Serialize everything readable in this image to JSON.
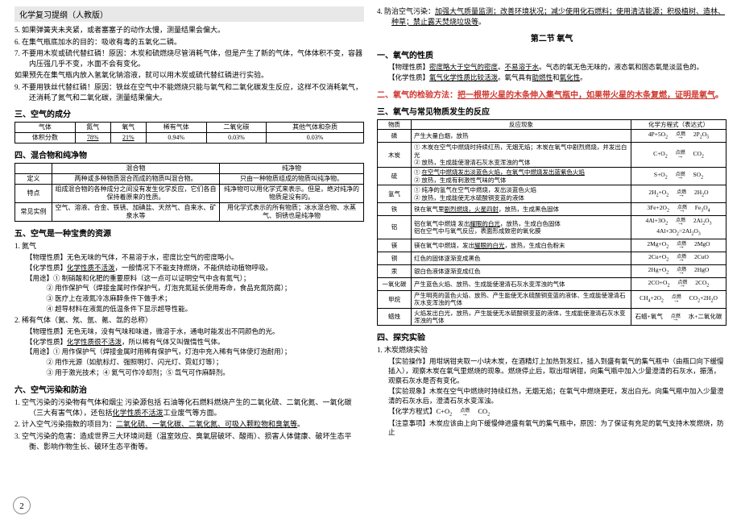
{
  "header": "化学复习提纲（人教版）",
  "page_num": "2",
  "left": {
    "items": [
      "5.  如果弹簧夹未夹紧，或者塞塞子的动作太慢，测量结果会偏大。",
      "6.  在集气瓶底加水的目的：吸收有毒的五氧化二磷。",
      "7.  不要用木炭或硫代替红磷！原因：木炭和硫燃烧尽管消耗气体，但是产生了新的气体，气体体积不变，容器内压强几乎不变，水面不会有变化。",
      "    如果预先在集气瓶内放入氢氧化钠溶液，就可以用木炭或硫代替红磷进行实验。",
      "9.  不要用铁丝代替红磷！原因：铁丝在空气中不能燃烧只能与氧气和二氧化碳发生反应，这样不仅消耗氧气，还消耗了氮气和二氧化碳，测量结果偏大。"
    ],
    "sec3_title": "三、空气的成分",
    "air_table": {
      "headers": [
        "气体",
        "氮气",
        "氧气",
        "稀有气体",
        "二氧化碳",
        "其他气体和杂质"
      ],
      "row_label": "体积分数",
      "vals": [
        "78%",
        "21%",
        "0.94%",
        "0.03%",
        "0.03%"
      ]
    },
    "sec4_title": "四、混合物和纯净物",
    "def_table": {
      "col1": "混合物",
      "col2": "纯净物",
      "rows": [
        [
          "定义",
          "两种或多种物质混合而成的物质叫混合物。",
          "只由一种物质组成的物质叫纯净物。"
        ],
        [
          "特点",
          "组成混合物的各种成分之间没有发生化学反应，它们各自保持着原来的性质。",
          "纯净物可以用化学式来表示。但是，绝对纯净的物质是没有的。"
        ],
        [
          "常见实例",
          "空气、溶液、合金、铁锈、加碘盐、天然气、自来水、矿泉水等",
          "用化学式表示的所有物质；冰水混合物、水蒸气、铜锈也是纯净物"
        ]
      ]
    },
    "sec5_title": "五、空气是一种宝贵的资源",
    "n2_title": "1.  氮气",
    "n2_items": [
      "【物理性质】无色无味的气体，不易溶于水，密度比空气的密度略小。",
      "【化学性质】<u>化学性质不活泼</u>，一般情况下不能支持燃烧，不能供给动植物呼吸。",
      "【用途】① 制硝酸和化肥的重要原料（这一点可以证明空气中含有氮气）；",
      "　　　② 用作保护气（焊接金属时作保护气，灯泡充氮延长使用寿命，食品充氮防腐）；",
      "　　　③ 医疗上在液氮冷冻麻醉条件下做手术；",
      "　　　④ 超导材料在液氮的低温条件下显示超导性能。"
    ],
    "rare_title": "2.  稀有气体（氦、氖、氩、氪、氙的总称）",
    "rare_items": [
      "【物理性质】无色无味，没有气味和味道，微溶于水，通电时能发出不同颜色的光。",
      "【化学性质】<u>化学性质很不活泼</u>，所以稀有气体又叫做惰性气体。",
      "【用途】① 用作保护气（焊接金属时用稀有保护气，灯泡中充入稀有气体使灯泡耐用）；",
      "　　　② 用作光源（如航标灯、强照明灯、闪光灯、霓虹灯等）；",
      "　　　③ 用于激光技术；④ 氦气可作冷却剂；⑤ 氙气可作麻醉剂。"
    ],
    "sec6_title": "六、空气污染和防治",
    "pollute_items": [
      "1.  空气污染的污染物有气体和烟尘 污染源包括 石油等化石燃料燃烧产生的二氧化硫、二氧化氮、一氧化碳（三大有害气体），还包括<u>化学性质不活泼</u>工业废气等方面。",
      "2.  计入空气污染指数的项目为：<u>二氧化硫、一氧化碳、二氧化氮、可吸入颗粒物和臭氧等</u>。",
      "3.  空气污染的危害：造成世界三大环境问题（温室效应、臭氧层破坏、酸雨）、损害人体健康、破坏生态平衡、影响作物生长、破环生态平衡等。"
    ]
  },
  "right": {
    "top_item": "4. 防治空气污染：<u>加强大气质量监测；改善环境状况；减少使用化石燃料；使用清洁能源；积极植树、造林、种草；禁止露天焚烧垃圾等</u>。",
    "section2_title": "第二节  氧气",
    "prop_title": "一、氧气的性质",
    "phys": "【物理性质】<u>密度略大于空气的密度</u>。<u>不易溶于水</u>。气态的氧无色无味的，液态氧和固态氧是淡蓝色的。",
    "chem": "【化学性质】<u>氧气化学性质比较活泼</u>。氧气具有<u>助燃性</u>和<u>氧化性</u>。",
    "sec2_title": "二、氧气的检验方法：<span class='under-red'>把一根带火星的木条伸入集气瓶中，如果带火星的木条复燃，证明是氧气</span>。",
    "sec3_title": "三、氧气与常见物质发生的反应",
    "reaction_table": {
      "headers": [
        "物质",
        "反应现象",
        "化学方程式（表达式）"
      ],
      "rows": [
        [
          "磷",
          "产生大量白烟，放热",
          "4P+5O<sub>2</sub>",
          "2P<sub>2</sub>O<sub>5</sub>"
        ],
        [
          "木炭",
          "① 木炭在空气中燃烧时持续红热，无烟无焰；木炭在氧气中剧烈燃烧，并发出白光<br>② 放热，生成能使澄清石灰水变浑浊的气体",
          "C+O<sub>2</sub>",
          "CO<sub>2</sub>"
        ],
        [
          "硫",
          "① <u>在空气中燃烧发出淡蓝色火焰，在氧气中燃烧发出蓝紫色火焰</u><br>② 放热，生成有刺激性气味的气体",
          "S+O<sub>2</sub>",
          "SO<sub>2</sub>"
        ],
        [
          "氢气",
          "① 纯净的氢气在空气中燃烧，发出淡蓝色火焰<br>② 放热，生成能使无水硫酸铜变蓝的液体",
          "2H<sub>2</sub>+O<sub>2</sub>",
          "2H<sub>2</sub>O"
        ],
        [
          "铁",
          "铁在氧气里<u>剧烈燃烧，火星四射</u>，放热，生成黑色固体",
          "3Fe+2O<sub>2</sub>",
          "Fe<sub>3</sub>O<sub>4</sub>"
        ],
        [
          "铝",
          "铝在氧气中燃烧 发出<u>耀眼的白光</u>，放热，生成白色固体<br>铝在空气中与氧气反应，表面形成致密的氧化膜",
          "4Al+3O<sub>2</sub>",
          "2Al<sub>2</sub>O<sub>3</sub><br>4Al+3O<sub>2</sub>=2Al<sub>2</sub>O<sub>3</sub>"
        ],
        [
          "镁",
          "镁在氧气中燃烧，发出<u>耀眼的白光</u>，放热，生成白色粉末",
          "2Mg+O<sub>2</sub>",
          "2MgO"
        ],
        [
          "铜",
          "红色的固体逐渐变成黑色",
          "2Cu+O<sub>2</sub>",
          "2CuO"
        ],
        [
          "汞",
          "银白色液体逐渐变成红色",
          "2Hg+O<sub>2</sub>",
          "2HgO"
        ],
        [
          "一氧化碳",
          "产生蓝色火焰、放热、生成能使澄清石灰水变浑浊的气体",
          "2CO+O<sub>2</sub>",
          "2CO<sub>2</sub>"
        ],
        [
          "甲烷",
          "产生明亮的蓝色火焰、放热、产生能使无水硫酸铜变蓝的液体、生成能使澄清石灰水变浑浊的气体",
          "CH<sub>4</sub>+2O<sub>2</sub>",
          "CO<sub>2</sub>+2H<sub>2</sub>O"
        ],
        [
          "蜡烛",
          "火焰发出白光，放热，产生能使无水硫酸铜变蓝的液体，生成能使澄清石灰水变浑浊的气体",
          "石蜡+氧气",
          "水+二氧化碳"
        ]
      ]
    },
    "sec4_title": "四、探究实验",
    "exp_title": "1.  木炭燃烧实验",
    "exp_items": [
      "【实验操作】用坩埚钳夹取一小块木炭，在酒精灯上加热到发红，插入到盛有氧气的集气瓶中（由瓶口向下缓慢插入），观察木炭在氧气里燃烧的现象。燃烧停止后，取出坩埚钳，向集气瓶中加入少量澄清的石灰水，振荡，观察石灰水是否有变化。",
      "【实验现象】木炭在空气中燃烧时持续红热，无烟无焰；在氧气中燃烧更旺，发出白光。向集气瓶中加入少量澄清的石灰水后，澄清石灰水变浑浊。",
      "【化学方程式】C+O<sub>2</sub> <span class='eq-arrow'>点燃</span> CO<sub>2</sub>",
      "【注意事项】木炭应该由上向下缓慢伸进盛有氧气的集气瓶中，原因：为了保证有充足的氧气支持木炭燃烧，防止"
    ]
  }
}
